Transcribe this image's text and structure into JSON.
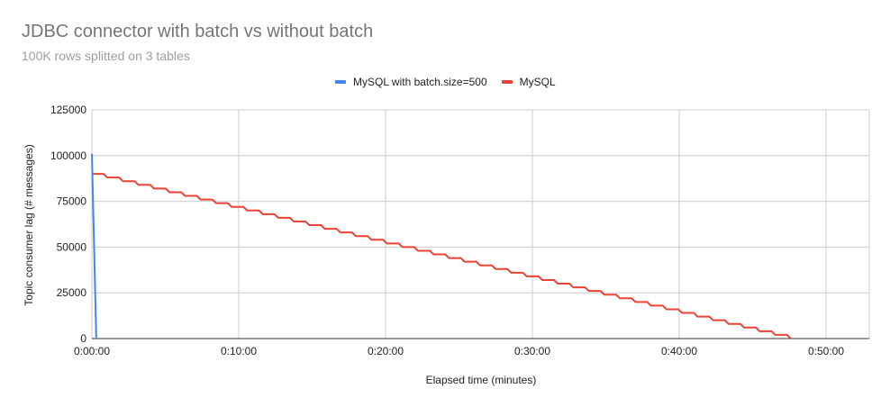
{
  "chart_data": {
    "type": "line",
    "title": "JDBC connector with batch vs without batch",
    "subtitle": "100K rows splitted on 3 tables",
    "xlabel": "Elapsed time (minutes)",
    "ylabel": "Topic consumer lag (# messages)",
    "ylim": [
      0,
      125000
    ],
    "yticks": [
      "0",
      "25000",
      "50000",
      "75000",
      "100000",
      "125000"
    ],
    "xticks": [
      "0:00:00",
      "0:10:00",
      "0:20:00",
      "0:30:00",
      "0:40:00",
      "0:50:00"
    ],
    "xlim_minutes": [
      0,
      53
    ],
    "grid": true,
    "legend_position": "top",
    "series": [
      {
        "name": "MySQL with batch.size=500",
        "color": "#4285f4",
        "x_minutes": [
          0,
          0.3
        ],
        "values": [
          101000,
          0
        ]
      },
      {
        "name": "MySQL",
        "color": "#ea4335",
        "x_minutes": [
          0,
          47.6
        ],
        "values": [
          90000,
          0
        ],
        "shape": "staircase, ~2000 message steps roughly every 1.06 minutes"
      }
    ]
  },
  "legend": {
    "items": [
      {
        "label": "MySQL with batch.size=500",
        "color": "#4285f4"
      },
      {
        "label": "MySQL",
        "color": "#ea4335"
      }
    ]
  }
}
